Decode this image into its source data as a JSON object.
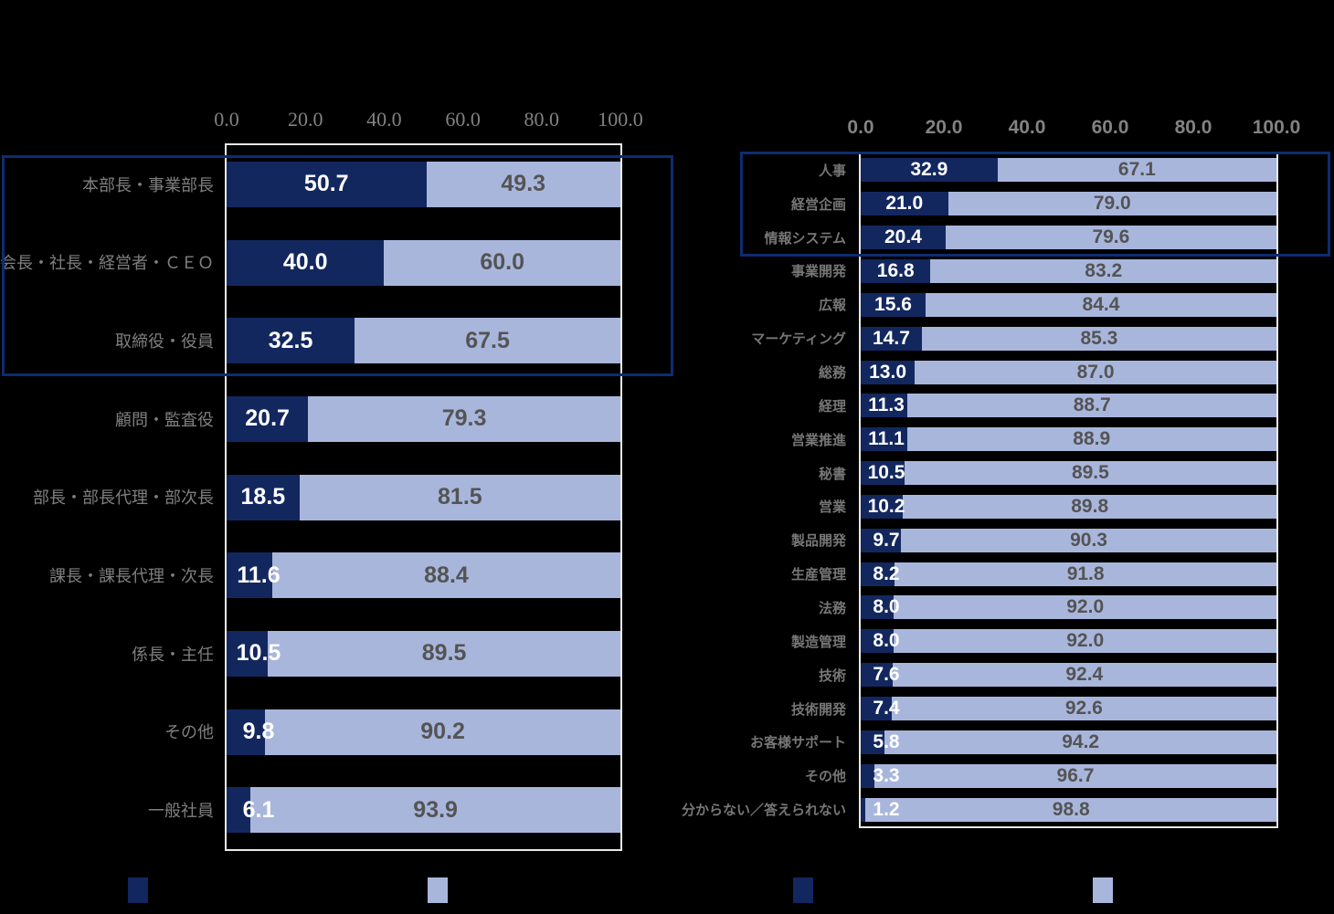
{
  "colors": {
    "dark_navy": "#13275F",
    "light_periwinkle": "#A9B6DC",
    "highlight_border": "#0D2C72",
    "plot_frame": "#E9E9E9",
    "axis_label": "#828282",
    "category_label_left": "#7F7F7F",
    "category_label_right": "#767676",
    "value_on_dark": "#FFFFFF",
    "value_on_light": "#545454",
    "background": "#000000"
  },
  "chart_data": [
    {
      "type": "bar",
      "orientation": "horizontal",
      "stacked": true,
      "title": "",
      "xlabel": "",
      "ylabel": "",
      "xlim": [
        0,
        100
      ],
      "ticks": [
        0,
        20,
        40,
        60,
        80,
        100
      ],
      "tick_labels": [
        "0.0",
        "20.0",
        "40.0",
        "60.0",
        "80.0",
        "100.0"
      ],
      "categories": [
        "本部長・事業部長",
        "会長・社長・経営者・ＣＥＯ",
        "取締役・役員",
        "顧問・監査役",
        "部長・部長代理・部次長",
        "課長・課長代理・次長",
        "係長・主任",
        "その他",
        "一般社員"
      ],
      "series": [
        {
          "name": "dark",
          "values": [
            50.7,
            40.0,
            32.5,
            20.7,
            18.5,
            11.6,
            10.5,
            9.8,
            6.1
          ]
        },
        {
          "name": "light",
          "values": [
            49.3,
            60.0,
            67.5,
            79.3,
            81.5,
            88.4,
            89.5,
            90.2,
            93.9
          ]
        }
      ],
      "highlighted_category_indexes": [
        0,
        1,
        2
      ],
      "grid": false,
      "legend_position": "bottom"
    },
    {
      "type": "bar",
      "orientation": "horizontal",
      "stacked": true,
      "title": "",
      "xlabel": "",
      "ylabel": "",
      "xlim": [
        0,
        100
      ],
      "ticks": [
        0,
        20,
        40,
        60,
        80,
        100
      ],
      "tick_labels": [
        "0.0",
        "20.0",
        "40.0",
        "60.0",
        "80.0",
        "100.0"
      ],
      "categories": [
        "人事",
        "経営企画",
        "情報システム",
        "事業開発",
        "広報",
        "マーケティング",
        "総務",
        "経理",
        "営業推進",
        "秘書",
        "営業",
        "製品開発",
        "生産管理",
        "法務",
        "製造管理",
        "技術",
        "技術開発",
        "お客様サポート",
        "その他",
        "分からない／答えられない"
      ],
      "series": [
        {
          "name": "dark",
          "values": [
            32.9,
            21.0,
            20.4,
            16.8,
            15.6,
            14.7,
            13.0,
            11.3,
            11.1,
            10.5,
            10.2,
            9.7,
            8.2,
            8.0,
            8.0,
            7.6,
            7.4,
            5.8,
            3.3,
            1.2
          ]
        },
        {
          "name": "light",
          "values": [
            67.1,
            79.0,
            79.6,
            83.2,
            84.4,
            85.3,
            87.0,
            88.7,
            88.9,
            89.5,
            89.8,
            90.3,
            91.8,
            92.0,
            92.0,
            92.4,
            92.6,
            94.2,
            96.7,
            98.8
          ]
        }
      ],
      "highlighted_category_indexes": [
        0,
        1,
        2
      ],
      "grid": false,
      "legend_position": "bottom"
    }
  ],
  "legend": {
    "labels_visible": false,
    "items": [
      {
        "swatch": "dark_navy",
        "label": ""
      },
      {
        "swatch": "light_periwinkle",
        "label": ""
      }
    ]
  }
}
